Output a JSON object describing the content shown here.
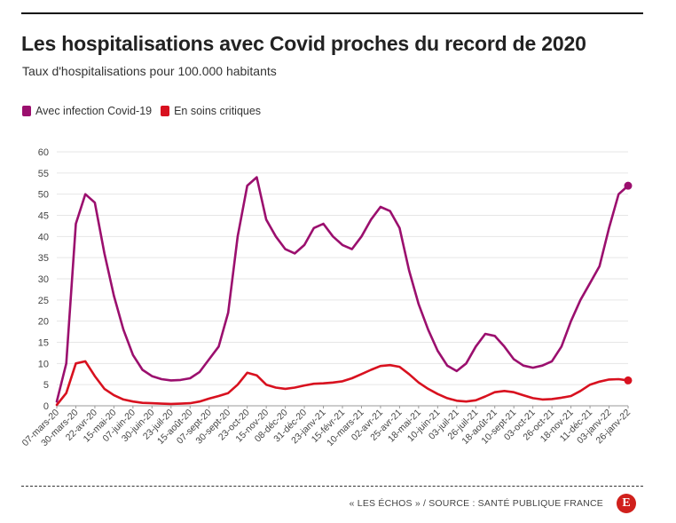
{
  "header": {
    "title": "Les hospitalisations avec Covid proches du record de 2020",
    "subtitle": "Taux d'hospitalisations pour 100.000 habitants"
  },
  "legend": [
    {
      "label": "Avec infection Covid-19",
      "color": "#9b0f6e"
    },
    {
      "label": "En soins critiques",
      "color": "#d8111f"
    }
  ],
  "footer": {
    "source": "« LES ÉCHOS » / SOURCE : SANTÉ PUBLIQUE FRANCE",
    "logo_letter": "E"
  },
  "chart_data": {
    "type": "line",
    "title": "Les hospitalisations avec Covid proches du record de 2020",
    "subtitle": "Taux d'hospitalisations pour 100.000 habitants",
    "xlabel": "",
    "ylabel": "",
    "ylim": [
      0,
      60
    ],
    "yticks": [
      0,
      5,
      10,
      15,
      20,
      25,
      30,
      35,
      40,
      45,
      50,
      55,
      60
    ],
    "grid": true,
    "legend_position": "top-left",
    "x_tick_labels": [
      "07-mars-20",
      "30-mars-20",
      "22-avr-20",
      "15-mai-20",
      "07-juin-20",
      "30-juin-20",
      "23-juil-20",
      "15-août-20",
      "07-sept-20",
      "30-sept-20",
      "23-oct-20",
      "15-nov-20",
      "08-déc-20",
      "31-déc-20",
      "23-janv-21",
      "15-févr-21",
      "10-mars-21",
      "02-avr-21",
      "25-avr-21",
      "18-mai-21",
      "10-juin-21",
      "03-juil-21",
      "26-juil-21",
      "18-août-21",
      "10-sept-21",
      "03-oct-21",
      "26-oct-21",
      "18-nov-21",
      "11-déc-21",
      "03-janv-22",
      "26-janv-22"
    ],
    "x": [
      "07-mars-20",
      "18-mars-20",
      "30-mars-20",
      "11-avr-20",
      "22-avr-20",
      "03-mai-20",
      "15-mai-20",
      "26-mai-20",
      "07-juin-20",
      "18-juin-20",
      "30-juin-20",
      "11-juil-20",
      "23-juil-20",
      "03-août-20",
      "15-août-20",
      "26-août-20",
      "07-sept-20",
      "18-sept-20",
      "30-sept-20",
      "11-oct-20",
      "23-oct-20",
      "03-nov-20",
      "15-nov-20",
      "26-nov-20",
      "08-déc-20",
      "19-déc-20",
      "31-déc-20",
      "11-janv-21",
      "23-janv-21",
      "03-févr-21",
      "15-févr-21",
      "26-févr-21",
      "10-mars-21",
      "21-mars-21",
      "02-avr-21",
      "13-avr-21",
      "25-avr-21",
      "06-mai-21",
      "18-mai-21",
      "29-mai-21",
      "10-juin-21",
      "21-juin-21",
      "03-juil-21",
      "14-juil-21",
      "26-juil-21",
      "06-août-21",
      "18-août-21",
      "29-août-21",
      "10-sept-21",
      "21-sept-21",
      "03-oct-21",
      "14-oct-21",
      "26-oct-21",
      "06-nov-21",
      "18-nov-21",
      "29-nov-21",
      "11-déc-21",
      "22-déc-21",
      "03-janv-22",
      "14-janv-22",
      "26-janv-22"
    ],
    "series": [
      {
        "name": "Avec infection Covid-19",
        "color": "#9b0f6e",
        "values": [
          1,
          10,
          43,
          50,
          48,
          36,
          26,
          18,
          12,
          8.5,
          7,
          6.3,
          6,
          6.1,
          6.5,
          8,
          11,
          14,
          22,
          40,
          52,
          54,
          44,
          40,
          37,
          36,
          38,
          42,
          43,
          40,
          38,
          37,
          40,
          44,
          47,
          46,
          42,
          32,
          24,
          18,
          13,
          9.5,
          8.2,
          10,
          14,
          17,
          16.5,
          14,
          11,
          9.5,
          9,
          9.5,
          10.5,
          14,
          20,
          25,
          29,
          33,
          42,
          50,
          52
        ]
      },
      {
        "name": "En soins critiques",
        "color": "#d8111f",
        "values": [
          0.2,
          3,
          10,
          10.5,
          7,
          4,
          2.5,
          1.5,
          1,
          0.7,
          0.6,
          0.5,
          0.45,
          0.5,
          0.6,
          1,
          1.7,
          2.3,
          3,
          5,
          7.8,
          7.2,
          5,
          4.3,
          4,
          4.3,
          4.8,
          5.2,
          5.3,
          5.5,
          5.8,
          6.5,
          7.5,
          8.5,
          9.4,
          9.6,
          9.2,
          7.5,
          5.5,
          4,
          2.8,
          1.8,
          1.2,
          1,
          1.3,
          2.2,
          3.2,
          3.5,
          3.2,
          2.5,
          1.8,
          1.5,
          1.6,
          1.9,
          2.3,
          3.5,
          5,
          5.7,
          6.2,
          6.3,
          6
        ]
      }
    ]
  }
}
